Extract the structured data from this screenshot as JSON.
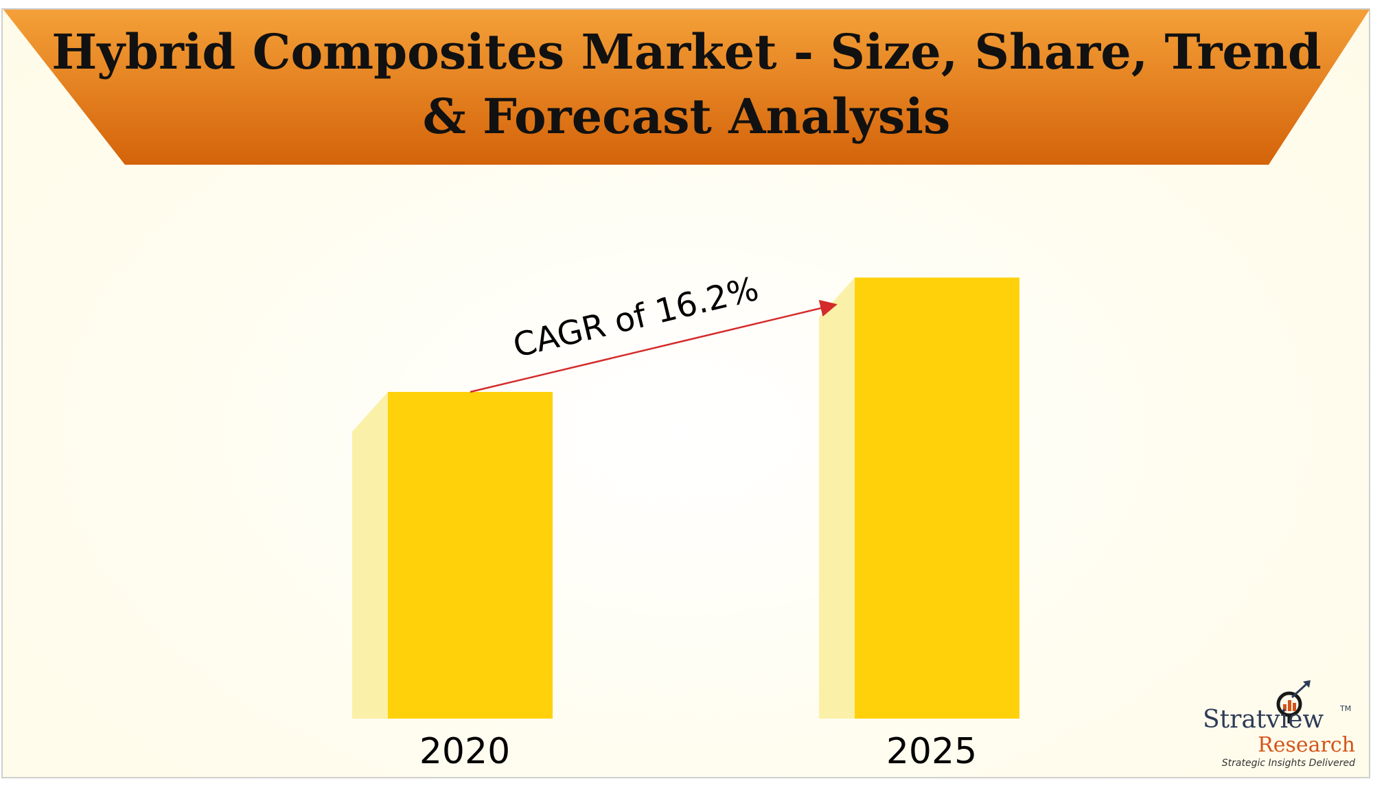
{
  "title": {
    "line1": "Hybrid Composites Market - Size, Share, Trend",
    "line2": "& Forecast Analysis"
  },
  "colors": {
    "banner_top": "#f4a038",
    "banner_bottom": "#d4630a",
    "bar_front": "#ffd10a",
    "bar_side": "#faf0a8",
    "arrow": "#d42a2a"
  },
  "chart_data": {
    "type": "bar",
    "categories": [
      "2020",
      "2025"
    ],
    "values": [
      1.0,
      1.35
    ],
    "annotation": "CAGR of 16.2%",
    "title": "",
    "xlabel": "",
    "ylabel": "",
    "grid": false
  },
  "logo": {
    "name": "Stratview",
    "tm": "TM",
    "research": "Research",
    "tagline": "Strategic Insights Delivered",
    "icon": "magnifier-chart-icon"
  }
}
